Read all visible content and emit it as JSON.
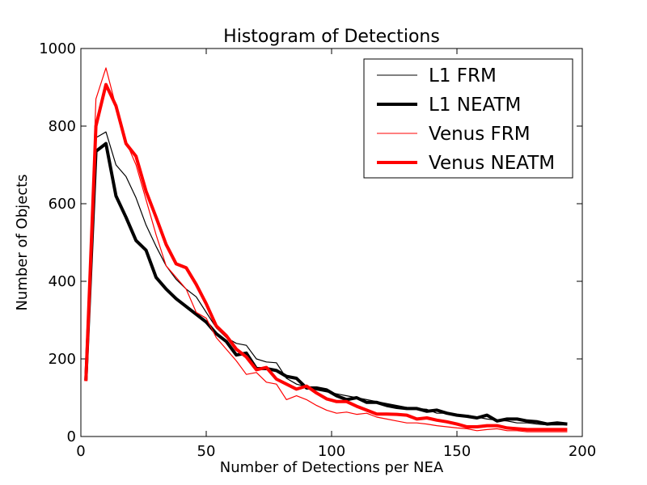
{
  "chart_data": {
    "type": "line",
    "title": "Histogram of Detections",
    "xlabel": "Number of Detections per NEA",
    "ylabel": "Number of Objects",
    "xlim": [
      0,
      200
    ],
    "ylim": [
      0,
      1000
    ],
    "xticks": [
      0,
      50,
      100,
      150,
      200
    ],
    "yticks": [
      0,
      200,
      400,
      600,
      800,
      1000
    ],
    "grid": false,
    "legend_position": "top-right",
    "x": [
      2,
      6,
      10,
      14,
      18,
      22,
      26,
      30,
      34,
      38,
      42,
      46,
      50,
      54,
      58,
      62,
      66,
      70,
      74,
      78,
      82,
      86,
      90,
      94,
      98,
      102,
      106,
      110,
      114,
      118,
      122,
      126,
      130,
      134,
      138,
      142,
      146,
      150,
      154,
      158,
      162,
      166,
      170,
      174,
      178,
      182,
      186,
      190,
      194
    ],
    "series": [
      {
        "name": "L1 FRM",
        "color": "#000000",
        "width": "thin",
        "values": [
          150,
          770,
          785,
          700,
          670,
          615,
          545,
          490,
          440,
          405,
          380,
          360,
          320,
          280,
          255,
          240,
          235,
          200,
          192,
          190,
          150,
          135,
          128,
          120,
          115,
          110,
          105,
          100,
          95,
          90,
          85,
          80,
          75,
          72,
          70,
          60,
          60,
          55,
          55,
          50,
          45,
          42,
          40,
          35,
          35,
          32,
          30,
          30,
          30
        ]
      },
      {
        "name": "L1 NEATM",
        "color": "#000000",
        "width": "thick",
        "values": [
          145,
          735,
          755,
          620,
          565,
          505,
          480,
          410,
          380,
          355,
          335,
          315,
          295,
          265,
          245,
          210,
          215,
          175,
          175,
          170,
          155,
          150,
          125,
          125,
          120,
          105,
          95,
          100,
          88,
          88,
          80,
          75,
          72,
          72,
          65,
          68,
          60,
          55,
          52,
          48,
          55,
          40,
          45,
          45,
          40,
          38,
          32,
          35,
          32
        ]
      },
      {
        "name": "Venus FRM",
        "color": "#ff0000",
        "width": "thin",
        "values": [
          145,
          870,
          950,
          850,
          760,
          700,
          610,
          520,
          440,
          410,
          380,
          320,
          305,
          255,
          225,
          195,
          160,
          165,
          140,
          135,
          95,
          105,
          95,
          80,
          68,
          60,
          63,
          57,
          60,
          50,
          45,
          40,
          35,
          35,
          32,
          28,
          25,
          22,
          20,
          15,
          18,
          20,
          15,
          15,
          12,
          12,
          12,
          12,
          12
        ]
      },
      {
        "name": "Venus NEATM",
        "color": "#ff0000",
        "width": "thick",
        "values": [
          143,
          800,
          907,
          852,
          755,
          722,
          632,
          565,
          495,
          445,
          435,
          392,
          342,
          285,
          260,
          225,
          205,
          172,
          178,
          148,
          135,
          122,
          130,
          112,
          97,
          90,
          90,
          78,
          68,
          58,
          58,
          57,
          55,
          45,
          48,
          42,
          38,
          32,
          25,
          25,
          28,
          28,
          22,
          20,
          18,
          18,
          18,
          18,
          18
        ]
      }
    ]
  }
}
